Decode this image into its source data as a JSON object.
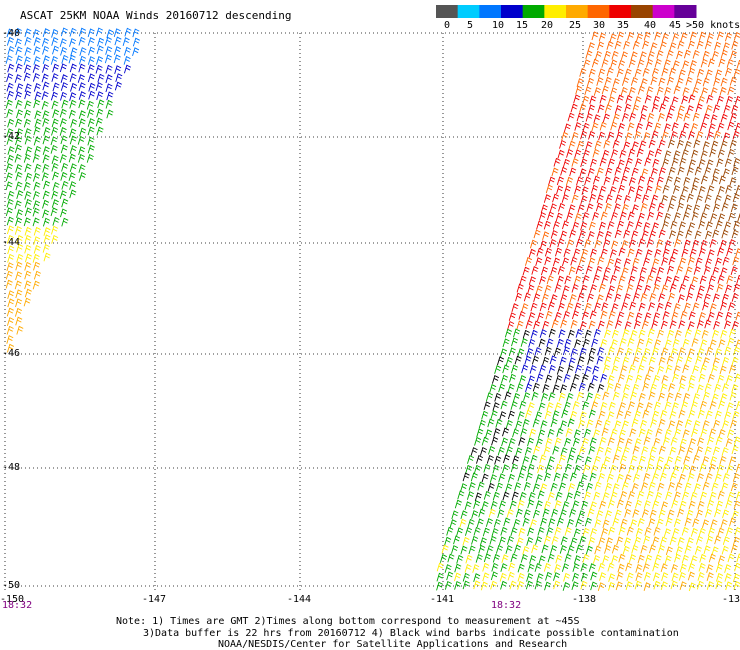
{
  "title": "ASCAT 25KM NOAA Winds 20160712 descending",
  "colorbar": {
    "labels": [
      "0",
      "5",
      "10",
      "15",
      "20",
      "25",
      "30",
      "35",
      "40",
      "45",
      ">50 knots"
    ],
    "colors": [
      "#555555",
      "#00ccff",
      "#0077ff",
      "#0000cc",
      "#00aa00",
      "#ffee00",
      "#ffaa00",
      "#ff6600",
      "#ee0000",
      "#994400",
      "#cc00cc",
      "#660099"
    ]
  },
  "lat_labels": [
    "-40",
    "-42",
    "-44",
    "-46",
    "-48",
    "-50"
  ],
  "lon_labels": [
    "-150",
    "-147",
    "-144",
    "-141",
    "-138",
    "-13"
  ],
  "times": [
    "18:32",
    "18:32"
  ],
  "notes": [
    "Note: 1) Times are GMT 2)Times along bottom correspond to measurement at ~45S",
    "3)Data buffer is 22 hrs from 20160712 4) Black wind barbs indicate possible contamination",
    "NOAA/NESDIS/Center for Satellite Applications and Research"
  ]
}
